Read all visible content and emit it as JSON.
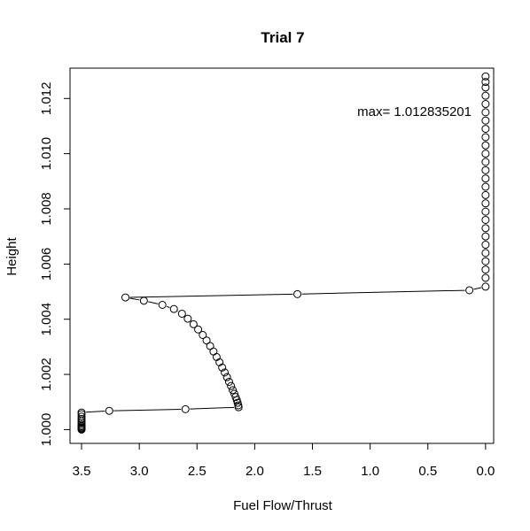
{
  "chart_data": {
    "type": "scatter",
    "title": "Trial 7",
    "xlabel": "Fuel Flow/Thrust",
    "ylabel": "Height",
    "xlim": [
      3.6,
      -0.07
    ],
    "ylim": [
      0.9995,
      1.0131
    ],
    "x_reversed": true,
    "x_ticks": [
      "3.5",
      "3.0",
      "2.5",
      "2.0",
      "1.5",
      "1.0",
      "0.5",
      "0.0"
    ],
    "y_ticks": [
      "1.000",
      "1.002",
      "1.004",
      "1.006",
      "1.008",
      "1.010",
      "1.012"
    ],
    "annotation": "max= 1.012835201",
    "grid": false,
    "legend": "none",
    "series": [
      {
        "points": [
          [
            3.5,
            1.0
          ],
          [
            3.5,
            1.00002
          ],
          [
            3.5,
            1.00005
          ],
          [
            3.5,
            1.00008
          ],
          [
            3.5,
            1.00012
          ],
          [
            3.5,
            1.00017
          ],
          [
            3.5,
            1.00023
          ],
          [
            3.5,
            1.0003
          ],
          [
            3.5,
            1.00038
          ],
          [
            3.5,
            1.00047
          ],
          [
            3.5,
            1.00056
          ],
          [
            3.5,
            1.00062
          ],
          [
            3.26,
            1.00068
          ],
          [
            2.6,
            1.00074
          ],
          [
            2.14,
            1.00081
          ],
          [
            2.142,
            1.00088
          ],
          [
            2.148,
            1.00097
          ],
          [
            2.155,
            1.00107
          ],
          [
            2.165,
            1.00118
          ],
          [
            2.176,
            1.0013
          ],
          [
            2.19,
            1.00143
          ],
          [
            2.205,
            1.00158
          ],
          [
            2.222,
            1.00173
          ],
          [
            2.24,
            1.0019
          ],
          [
            2.26,
            1.00207
          ],
          [
            2.282,
            1.00225
          ],
          [
            2.305,
            1.00244
          ],
          [
            2.33,
            1.00263
          ],
          [
            2.357,
            1.00283
          ],
          [
            2.386,
            1.00303
          ],
          [
            2.417,
            1.00323
          ],
          [
            2.45,
            1.00343
          ],
          [
            2.49,
            1.00363
          ],
          [
            2.53,
            1.00382
          ],
          [
            2.58,
            1.00402
          ],
          [
            2.63,
            1.0042
          ],
          [
            2.7,
            1.00437
          ],
          [
            2.8,
            1.00452
          ],
          [
            2.96,
            1.00467
          ],
          [
            3.12,
            1.00479
          ],
          [
            1.63,
            1.00491
          ],
          [
            0.14,
            1.00505
          ],
          [
            0.0,
            1.00518
          ],
          [
            0.0,
            1.0055
          ],
          [
            0.0,
            1.0058
          ],
          [
            0.0,
            1.0061
          ],
          [
            0.0,
            1.0064
          ],
          [
            0.0,
            1.0067
          ],
          [
            0.0,
            1.007
          ],
          [
            0.0,
            1.0073
          ],
          [
            0.0,
            1.0076
          ],
          [
            0.0,
            1.0079
          ],
          [
            0.0,
            1.0082
          ],
          [
            0.0,
            1.0085
          ],
          [
            0.0,
            1.0088
          ],
          [
            0.0,
            1.0091
          ],
          [
            0.0,
            1.0094
          ],
          [
            0.0,
            1.0097
          ],
          [
            0.0,
            1.01
          ],
          [
            0.0,
            1.0103
          ],
          [
            0.0,
            1.0106
          ],
          [
            0.0,
            1.0109
          ],
          [
            0.0,
            1.0112
          ],
          [
            0.0,
            1.0115
          ],
          [
            0.0,
            1.0118
          ],
          [
            0.0,
            1.0121
          ],
          [
            0.0,
            1.0124
          ],
          [
            0.0,
            1.0126
          ],
          [
            0.0,
            1.0128
          ]
        ]
      }
    ]
  }
}
